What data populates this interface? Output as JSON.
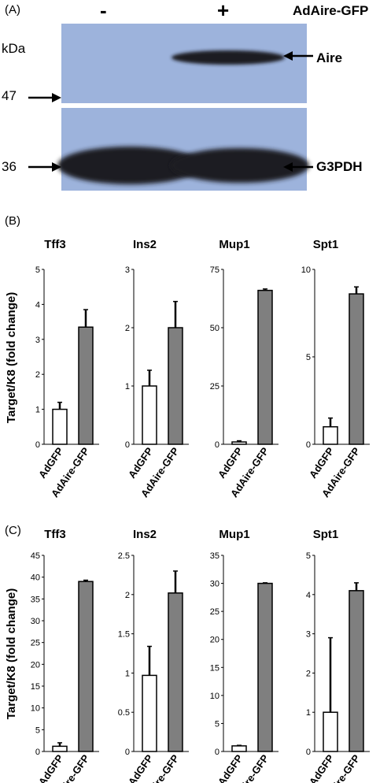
{
  "panel_a": {
    "label": "(A)",
    "lane_minus": "-",
    "lane_plus": "+",
    "construct": "AdAire-GFP",
    "unit": "kDa",
    "marker_47": "47",
    "marker_36": "36",
    "band_aire": "Aire",
    "band_g3pdh": "G3PDH"
  },
  "panel_b": {
    "label": "(B)",
    "ylabel": "Target/K8 (fold change)"
  },
  "panel_c": {
    "label": "(C)",
    "ylabel": "Target/K8 (fold change)"
  },
  "colors": {
    "blot_bg": "#9db3dc",
    "band": "#1c1d22",
    "bar_control": "#ffffff",
    "bar_treated": "#7f7f7f"
  },
  "chart_data": [
    {
      "type": "bar",
      "panel": "B",
      "title": "Tff3",
      "categories": [
        "AdGFP",
        "AdAire-GFP"
      ],
      "values": [
        1.0,
        3.35
      ],
      "errors": [
        0.2,
        0.5
      ],
      "ylim": [
        0,
        5
      ],
      "yticks": [
        "0",
        "1",
        "2",
        "3",
        "4",
        "5"
      ]
    },
    {
      "type": "bar",
      "panel": "B",
      "title": "Ins2",
      "categories": [
        "AdGFP",
        "AdAire-GFP"
      ],
      "values": [
        1.0,
        2.0
      ],
      "errors": [
        0.27,
        0.45
      ],
      "ylim": [
        0,
        3
      ],
      "yticks": [
        "0",
        "1",
        "2",
        "3"
      ]
    },
    {
      "type": "bar",
      "panel": "B",
      "title": "Mup1",
      "categories": [
        "AdGFP",
        "AdAire-GFP"
      ],
      "values": [
        1.0,
        66.0
      ],
      "errors": [
        0.5,
        0.6
      ],
      "ylim": [
        0,
        75
      ],
      "yticks": [
        "0",
        "25",
        "50",
        "75"
      ]
    },
    {
      "type": "bar",
      "panel": "B",
      "title": "Spt1",
      "categories": [
        "AdGFP",
        "AdAire-GFP"
      ],
      "values": [
        1.0,
        8.6
      ],
      "errors": [
        0.5,
        0.4
      ],
      "ylim": [
        0,
        10
      ],
      "yticks": [
        "0",
        "5",
        "10"
      ]
    },
    {
      "type": "bar",
      "panel": "C",
      "title": "Tff3",
      "categories": [
        "AdGFP",
        "AdAire-GFP"
      ],
      "values": [
        1.2,
        39.0
      ],
      "errors": [
        0.8,
        0.3
      ],
      "ylim": [
        0,
        45
      ],
      "yticks": [
        "0",
        "5",
        "10",
        "15",
        "20",
        "25",
        "30",
        "35",
        "40",
        "45"
      ]
    },
    {
      "type": "bar",
      "panel": "C",
      "title": "Ins2",
      "categories": [
        "AdGFP",
        "AdAire-GFP"
      ],
      "values": [
        0.97,
        2.02
      ],
      "errors": [
        0.37,
        0.28
      ],
      "ylim": [
        0,
        2.5
      ],
      "yticks": [
        "0",
        "0.5",
        "1",
        "1.5",
        "2",
        "2.5"
      ]
    },
    {
      "type": "bar",
      "panel": "C",
      "title": "Mup1",
      "categories": [
        "AdGFP",
        "AdAire-GFP"
      ],
      "values": [
        1.0,
        30.0
      ],
      "errors": [
        0.1,
        0.1
      ],
      "ylim": [
        0,
        35
      ],
      "yticks": [
        "0",
        "5",
        "10",
        "15",
        "20",
        "25",
        "30",
        "35"
      ]
    },
    {
      "type": "bar",
      "panel": "C",
      "title": "Spt1",
      "categories": [
        "AdGFP",
        "AdAire-GFP"
      ],
      "values": [
        1.0,
        4.1
      ],
      "errors": [
        1.9,
        0.2
      ],
      "ylim": [
        0,
        5
      ],
      "yticks": [
        "0",
        "1",
        "2",
        "3",
        "4",
        "5"
      ]
    }
  ]
}
